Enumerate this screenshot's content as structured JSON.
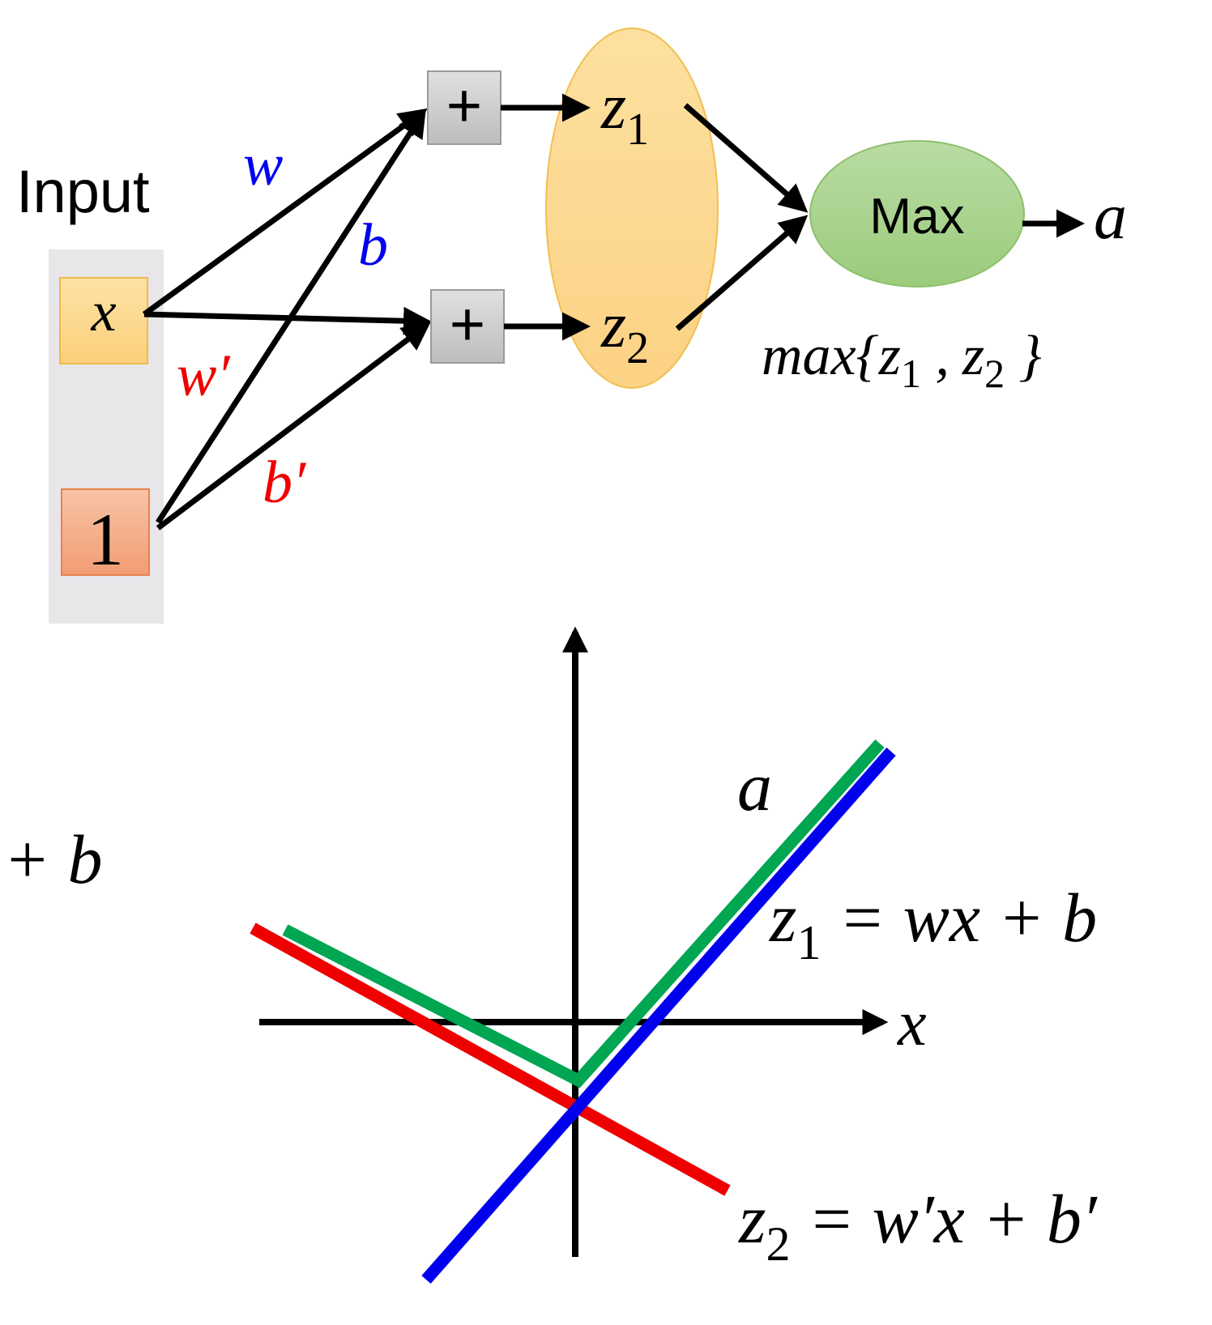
{
  "network": {
    "input_title": "Input",
    "inputs": {
      "x_label": "x",
      "one_label": "1"
    },
    "weights": {
      "w": "w",
      "b": "b",
      "w_prime": "w′",
      "b_prime": "b′"
    },
    "adders": {
      "top_symbol": "+",
      "bottom_symbol": "+"
    },
    "group": {
      "z1": "z",
      "z1_sub": "1",
      "z2": "z",
      "z2_sub": "2"
    },
    "max_node": {
      "label": "Max"
    },
    "output": {
      "label": "a"
    },
    "max_formula": {
      "prefix": "max{",
      "z1": "z",
      "z1_sub": "1",
      "comma": " ,",
      "z2": "z",
      "z2_sub": "2",
      "suffix": " }"
    }
  },
  "plot": {
    "x_axis_label": "x",
    "a_label": "a",
    "left_fragment": "+ b",
    "z1_eq": {
      "lhs": "z",
      "lhs_sub": "1",
      "rhs": " = wx + b"
    },
    "z2_eq": {
      "lhs": "z",
      "lhs_sub": "2",
      "rhs": " = w′x + b′"
    }
  },
  "colors": {
    "blue": "#0000ee",
    "red": "#ee0000",
    "green": "#00a651",
    "input_gray": "#e8e6e8",
    "x_box": "#fdd88a",
    "one_box": "#f4a77f",
    "adder": "#cfcfcf",
    "ellipse": "#fdd88a",
    "max_node": "#a9d18e"
  }
}
